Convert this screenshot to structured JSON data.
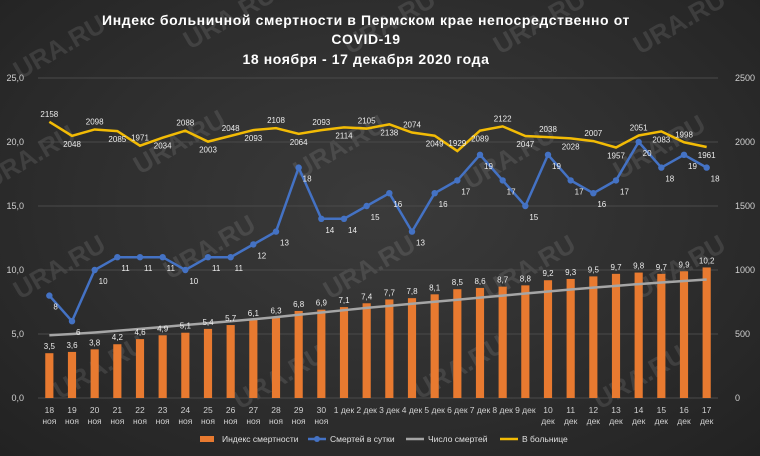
{
  "title_lines": [
    "Индекс больничной смертности в Пермском крае непосредственно от",
    "COVID-19",
    "18 ноября - 17 декабря 2020 года"
  ],
  "watermark": "URA.RU",
  "colors": {
    "bars": "#e87a30",
    "deaths_per_day": "#4472c4",
    "total_deaths": "#a5a5a5",
    "in_hospital": "#f2bb05",
    "text": "#d9d9d9"
  },
  "chart_data": {
    "type": "bar+line",
    "categories": [
      [
        "18",
        "ноя"
      ],
      [
        "19",
        "ноя"
      ],
      [
        "20",
        "ноя"
      ],
      [
        "21",
        "ноя"
      ],
      [
        "22",
        "ноя"
      ],
      [
        "23",
        "ноя"
      ],
      [
        "24",
        "ноя"
      ],
      [
        "25",
        "ноя"
      ],
      [
        "26",
        "ноя"
      ],
      [
        "27",
        "ноя"
      ],
      [
        "28",
        "ноя"
      ],
      [
        "29",
        "ноя"
      ],
      [
        "30",
        "ноя"
      ],
      [
        "1 дек"
      ],
      [
        "2 дек"
      ],
      [
        "3 дек"
      ],
      [
        "4 дек"
      ],
      [
        "5 дек"
      ],
      [
        "6 дек"
      ],
      [
        "7 дек"
      ],
      [
        "8 дек"
      ],
      [
        "9 дек"
      ],
      [
        "10",
        "дек"
      ],
      [
        "11",
        "дек"
      ],
      [
        "12",
        "дек"
      ],
      [
        "13",
        "дек"
      ],
      [
        "14",
        "дек"
      ],
      [
        "15",
        "дек"
      ],
      [
        "16",
        "дек"
      ],
      [
        "17",
        "дек"
      ]
    ],
    "left_axis": {
      "min": 0,
      "max": 25,
      "ticks": [
        "0,0",
        "5,0",
        "10,0",
        "15,0",
        "20,0",
        "25,0"
      ]
    },
    "right_axis": {
      "min": 0,
      "max": 2500,
      "ticks": [
        "0",
        "500",
        "1000",
        "1500",
        "2000",
        "2500"
      ]
    },
    "series": [
      {
        "name": "Индекс смертности",
        "kind": "bar",
        "axis": "left",
        "values": [
          3.5,
          3.6,
          3.8,
          4.2,
          4.6,
          4.9,
          5.1,
          5.4,
          5.7,
          6.1,
          6.3,
          6.8,
          6.9,
          7.1,
          7.4,
          7.7,
          7.8,
          8.1,
          8.5,
          8.6,
          8.7,
          8.8,
          9.2,
          9.3,
          9.5,
          9.7,
          9.8,
          9.7,
          9.9,
          10.2
        ],
        "labels": [
          "3,5",
          "3,6",
          "3,8",
          "4,2",
          "4,6",
          "4,9",
          "5,1",
          "5,4",
          "5,7",
          "6,1",
          "6,3",
          "6,8",
          "6,9",
          "7,1",
          "7,4",
          "7,7",
          "7,8",
          "8,1",
          "8,5",
          "8,6",
          "8,7",
          "8,8",
          "9,2",
          "9,3",
          "9,5",
          "9,7",
          "9,8",
          "9,7",
          "9,9",
          "10,2"
        ]
      },
      {
        "name": "Смертей в сутки",
        "kind": "line",
        "axis": "left",
        "values": [
          8,
          6,
          10,
          11,
          11,
          11,
          10,
          11,
          11,
          12,
          13,
          18,
          14,
          14,
          15,
          16,
          13,
          16,
          17,
          19,
          17,
          15,
          19,
          17,
          16,
          17,
          20,
          18,
          19,
          18
        ]
      },
      {
        "name": "Число смертей",
        "kind": "line",
        "axis": "right",
        "values": [
          490,
          500,
          512,
          525,
          540,
          555,
          570,
          585,
          600,
          615,
          632,
          650,
          668,
          686,
          704,
          720,
          736,
          752,
          768,
          784,
          800,
          816,
          832,
          848,
          862,
          876,
          890,
          902,
          914,
          926
        ]
      },
      {
        "name": "В больнице",
        "kind": "line",
        "axis": "right",
        "values": [
          2158,
          2048,
          2098,
          2085,
          1971,
          2034,
          2088,
          2003,
          2048,
          2093,
          2108,
          2064,
          2093,
          2114,
          2105,
          2138,
          2074,
          2049,
          1929,
          2089,
          2122,
          2047,
          2038,
          2028,
          2007,
          1957,
          2051,
          2083,
          1998,
          1961
        ],
        "labels": [
          "2158",
          "2048",
          "2098",
          "2085",
          "1971",
          "2034",
          "2088",
          "2003",
          "2048",
          "2093",
          "2108",
          "2064",
          "2093",
          "2114",
          "2105",
          "2138",
          "2074",
          "2049",
          "1929",
          "2089",
          "2122",
          "2047",
          "2038",
          "2028",
          "2007",
          "1957",
          "2051",
          "2083",
          "1998",
          "1961"
        ]
      }
    ],
    "legend_position": "bottom"
  }
}
